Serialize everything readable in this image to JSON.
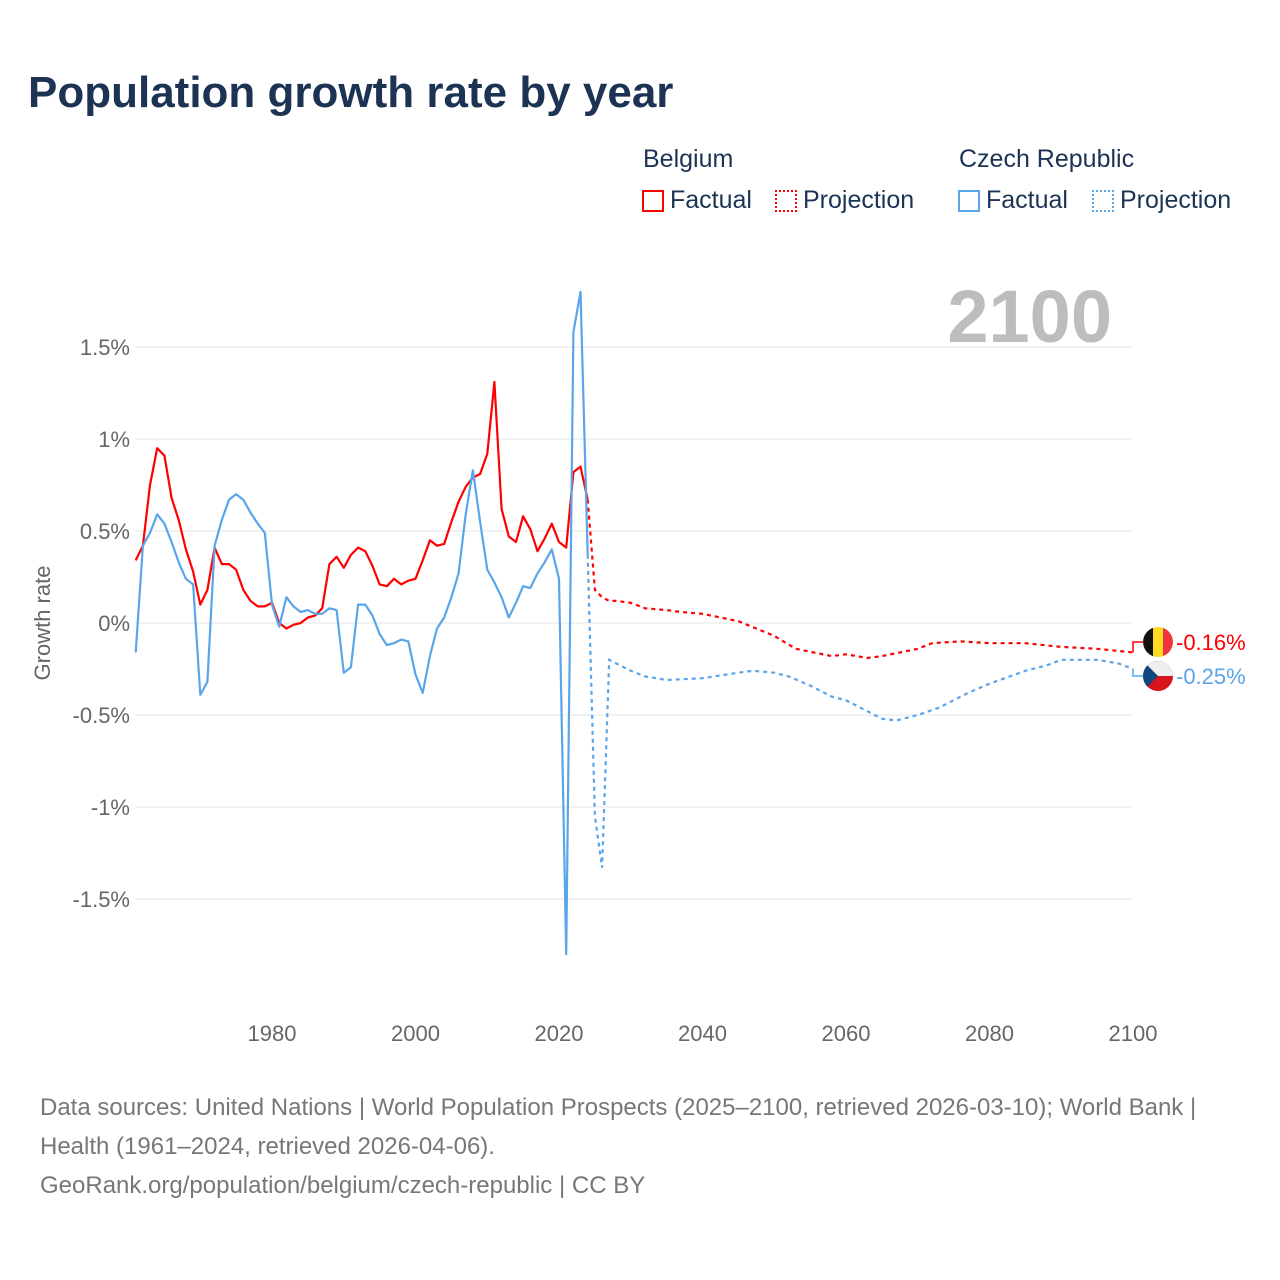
{
  "title": "Population growth rate by year",
  "legend": {
    "groups": [
      {
        "name": "Belgium",
        "factual": "Factual",
        "projection": "Projection",
        "color": "#ff0000"
      },
      {
        "name": "Czech Republic",
        "factual": "Factual",
        "projection": "Projection",
        "color": "#5aa5ea"
      }
    ]
  },
  "footer": {
    "line1": "Data sources: United Nations | World Population Prospects (2025–2100, retrieved 2026-03-10); World Bank | Health (1961–2024, retrieved 2026-04-06).",
    "line2": "GeoRank.org/population/belgium/czech-republic | CC BY"
  },
  "chart_data": {
    "type": "line",
    "title": "Population growth rate by year",
    "ylabel": "Growth rate",
    "xlabel": "",
    "year_label": "2100",
    "xlim": [
      1961,
      2100
    ],
    "ylim": [
      -1.8,
      1.8
    ],
    "xticks": [
      {
        "v": 1980,
        "label": "1980"
      },
      {
        "v": 2000,
        "label": "2000"
      },
      {
        "v": 2020,
        "label": "2020"
      },
      {
        "v": 2040,
        "label": "2040"
      },
      {
        "v": 2060,
        "label": "2060"
      },
      {
        "v": 2080,
        "label": "2080"
      },
      {
        "v": 2100,
        "label": "2100"
      }
    ],
    "yticks": [
      {
        "v": 1.5,
        "label": "1.5%"
      },
      {
        "v": 1,
        "label": "1%"
      },
      {
        "v": 0.5,
        "label": "0.5%"
      },
      {
        "v": 0,
        "label": "0%"
      },
      {
        "v": -0.5,
        "label": "-0.5%"
      },
      {
        "v": -1,
        "label": "-1%"
      },
      {
        "v": -1.5,
        "label": "-1.5%"
      }
    ],
    "series": [
      {
        "name": "Belgium",
        "color": "#ff0000",
        "end_label": "-0.16%",
        "factual": {
          "start": 1961,
          "values": [
            0.34,
            0.42,
            0.75,
            0.95,
            0.91,
            0.68,
            0.56,
            0.4,
            0.28,
            0.1,
            0.18,
            0.41,
            0.32,
            0.32,
            0.29,
            0.18,
            0.12,
            0.09,
            0.09,
            0.11,
            0.0,
            -0.03,
            -0.01,
            0.0,
            0.03,
            0.04,
            0.08,
            0.32,
            0.36,
            0.3,
            0.37,
            0.41,
            0.39,
            0.31,
            0.21,
            0.2,
            0.24,
            0.21,
            0.23,
            0.24,
            0.34,
            0.45,
            0.42,
            0.43,
            0.55,
            0.66,
            0.74,
            0.79,
            0.81,
            0.92,
            1.31,
            0.62,
            0.47,
            0.44,
            0.58,
            0.51,
            0.39,
            0.46,
            0.54,
            0.44,
            0.41,
            0.82,
            0.85,
            0.67
          ]
        },
        "projection": {
          "x": [
            2024,
            2025,
            2026,
            2027,
            2028,
            2030,
            2032,
            2035,
            2037,
            2040,
            2045,
            2050,
            2053,
            2058,
            2060,
            2063,
            2065,
            2070,
            2072,
            2076,
            2080,
            2085,
            2090,
            2095,
            2100
          ],
          "y": [
            0.67,
            0.18,
            0.14,
            0.12,
            0.12,
            0.11,
            0.08,
            0.07,
            0.06,
            0.05,
            0.01,
            -0.07,
            -0.14,
            -0.18,
            -0.17,
            -0.19,
            -0.18,
            -0.14,
            -0.11,
            -0.1,
            -0.11,
            -0.11,
            -0.13,
            -0.14,
            -0.16
          ]
        }
      },
      {
        "name": "Czech Republic",
        "color": "#5aa5ea",
        "end_label": "-0.25%",
        "factual": {
          "start": 1961,
          "values": [
            -0.16,
            0.42,
            0.49,
            0.59,
            0.54,
            0.44,
            0.33,
            0.24,
            0.21,
            -0.39,
            -0.32,
            0.42,
            0.56,
            0.67,
            0.7,
            0.67,
            0.6,
            0.54,
            0.49,
            0.1,
            -0.02,
            0.14,
            0.09,
            0.06,
            0.07,
            0.05,
            0.05,
            0.08,
            0.07,
            -0.27,
            -0.24,
            0.1,
            0.1,
            0.04,
            -0.06,
            -0.12,
            -0.11,
            -0.09,
            -0.1,
            -0.28,
            -0.38,
            -0.18,
            -0.03,
            0.03,
            0.14,
            0.27,
            0.59,
            0.83,
            0.55,
            0.29,
            0.22,
            0.14,
            0.03,
            0.11,
            0.2,
            0.19,
            0.27,
            0.33,
            0.4,
            0.24,
            -1.8,
            1.58,
            1.8,
            0.37
          ]
        },
        "projection": {
          "x": [
            2024,
            2025,
            2026,
            2027,
            2028,
            2030,
            2032,
            2035,
            2040,
            2045,
            2047,
            2050,
            2052,
            2055,
            2058,
            2060,
            2063,
            2065,
            2067,
            2070,
            2073,
            2077,
            2080,
            2085,
            2088,
            2090,
            2095,
            2098,
            2100
          ],
          "y": [
            0.37,
            -1.05,
            -1.33,
            -0.2,
            -0.22,
            -0.26,
            -0.29,
            -0.31,
            -0.3,
            -0.27,
            -0.26,
            -0.27,
            -0.29,
            -0.34,
            -0.4,
            -0.42,
            -0.48,
            -0.52,
            -0.53,
            -0.5,
            -0.46,
            -0.38,
            -0.33,
            -0.26,
            -0.23,
            -0.2,
            -0.2,
            -0.22,
            -0.25
          ]
        }
      }
    ]
  }
}
